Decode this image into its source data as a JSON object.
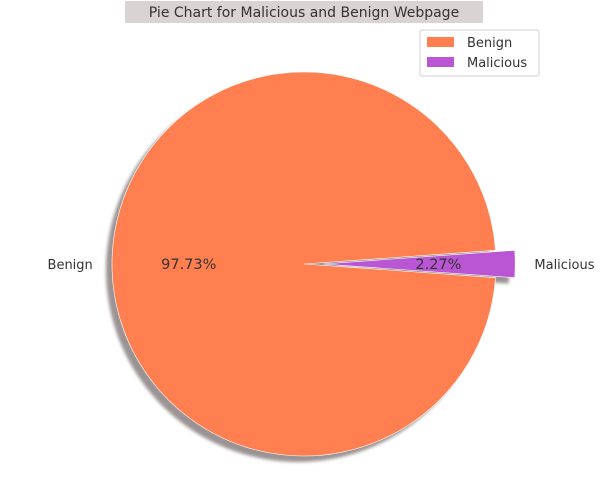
{
  "chart_data": {
    "type": "pie",
    "title": "Pie Chart for Malicious and Benign Webpage",
    "categories": [
      "Benign",
      "Malicious"
    ],
    "values": [
      97.73,
      2.27
    ],
    "percent_labels": [
      "97.73%",
      "2.27%"
    ],
    "colors": [
      "#ff7f50",
      "#ba55d3"
    ],
    "explode": [
      0,
      0.1
    ],
    "shadow": true,
    "legend": {
      "position": "top-right",
      "entries": [
        "Benign",
        "Malicious"
      ]
    }
  }
}
